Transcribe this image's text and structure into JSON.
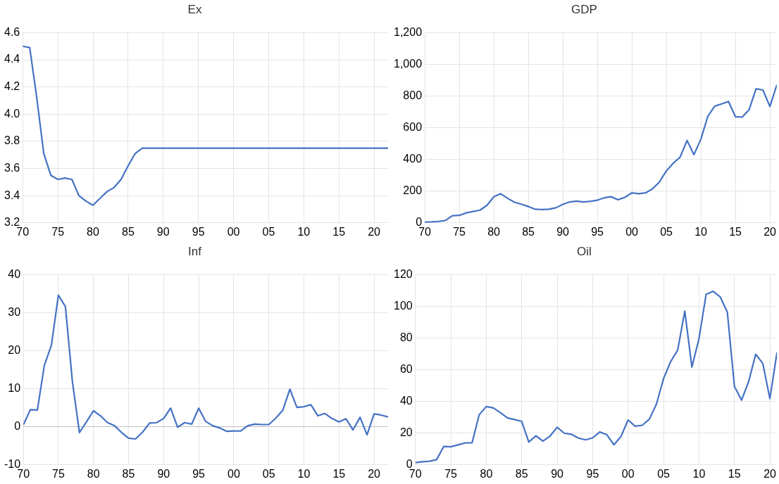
{
  "chart_data": [
    {
      "type": "line",
      "title": "Ex",
      "x": [
        1970,
        1971,
        1972,
        1973,
        1974,
        1975,
        1976,
        1977,
        1978,
        1979,
        1980,
        1981,
        1982,
        1983,
        1984,
        1985,
        1986,
        1987,
        1988,
        1989,
        1990,
        1991,
        1992,
        1993,
        1994,
        1995,
        1996,
        1997,
        1998,
        1999,
        2000,
        2001,
        2002,
        2003,
        2004,
        2005,
        2006,
        2007,
        2008,
        2009,
        2010,
        2011,
        2012,
        2013,
        2014,
        2015,
        2016,
        2017,
        2018,
        2019,
        2020,
        2021,
        2022
      ],
      "series": [
        {
          "color": "#4472c4",
          "values": [
            4.5,
            4.49,
            4.12,
            3.71,
            3.55,
            3.52,
            3.53,
            3.52,
            3.4,
            3.36,
            3.33,
            3.38,
            3.43,
            3.46,
            3.52,
            3.62,
            3.71,
            3.75,
            3.75,
            3.75,
            3.75,
            3.75,
            3.75,
            3.75,
            3.75,
            3.75,
            3.75,
            3.75,
            3.75,
            3.75,
            3.75,
            3.75,
            3.75,
            3.75,
            3.75,
            3.75,
            3.75,
            3.75,
            3.75,
            3.75,
            3.75,
            3.75,
            3.75,
            3.75,
            3.75,
            3.75,
            3.75,
            3.75,
            3.75,
            3.75,
            3.75,
            3.75,
            3.75
          ]
        }
      ],
      "xlim": [
        1970,
        2022
      ],
      "xticks": [
        {
          "value": 1970,
          "label": "70"
        },
        {
          "value": 1975,
          "label": "75"
        },
        {
          "value": 1980,
          "label": "80"
        },
        {
          "value": 1985,
          "label": "85"
        },
        {
          "value": 1990,
          "label": "90"
        },
        {
          "value": 1995,
          "label": "95"
        },
        {
          "value": 2000,
          "label": "00"
        },
        {
          "value": 2005,
          "label": "05"
        },
        {
          "value": 2010,
          "label": "10"
        },
        {
          "value": 2015,
          "label": "15"
        },
        {
          "value": 2020,
          "label": "20"
        }
      ],
      "ylim": [
        3.2,
        4.6
      ],
      "yticks": [
        {
          "value": 3.2,
          "label": "3.2"
        },
        {
          "value": 3.4,
          "label": "3.4"
        },
        {
          "value": 3.6,
          "label": "3.6"
        },
        {
          "value": 3.8,
          "label": "3.8"
        },
        {
          "value": 4.0,
          "label": "4.0"
        },
        {
          "value": 4.2,
          "label": "4.2"
        },
        {
          "value": 4.4,
          "label": "4.4"
        },
        {
          "value": 4.6,
          "label": "4.6"
        }
      ],
      "grid": true,
      "legend": false,
      "marker": "none"
    },
    {
      "type": "line",
      "title": "GDP",
      "x": [
        1970,
        1971,
        1972,
        1973,
        1974,
        1975,
        1976,
        1977,
        1978,
        1979,
        1980,
        1981,
        1982,
        1983,
        1984,
        1985,
        1986,
        1987,
        1988,
        1989,
        1990,
        1991,
        1992,
        1993,
        1994,
        1995,
        1996,
        1997,
        1998,
        1999,
        2000,
        2001,
        2002,
        2003,
        2004,
        2005,
        2006,
        2007,
        2008,
        2009,
        2010,
        2011,
        2012,
        2013,
        2014,
        2015,
        2016,
        2017,
        2018,
        2019,
        2020,
        2021
      ],
      "series": [
        {
          "color": "#4472c4",
          "values": [
            4,
            6,
            9,
            15,
            45,
            47,
            63,
            72,
            80,
            110,
            164,
            184,
            155,
            130,
            118,
            103,
            86,
            84,
            86,
            95,
            117,
            132,
            137,
            132,
            136,
            143,
            158,
            165,
            146,
            161,
            189,
            184,
            189,
            215,
            258,
            328,
            376,
            415,
            520,
            430,
            528,
            671,
            736,
            750,
            766,
            670,
            667,
            715,
            846,
            838,
            734,
            870
          ]
        }
      ],
      "xlim": [
        1970,
        2021
      ],
      "xticks": [
        {
          "value": 1970,
          "label": "70"
        },
        {
          "value": 1975,
          "label": "75"
        },
        {
          "value": 1980,
          "label": "80"
        },
        {
          "value": 1985,
          "label": "85"
        },
        {
          "value": 1990,
          "label": "90"
        },
        {
          "value": 1995,
          "label": "95"
        },
        {
          "value": 2000,
          "label": "00"
        },
        {
          "value": 2005,
          "label": "05"
        },
        {
          "value": 2010,
          "label": "10"
        },
        {
          "value": 2015,
          "label": "15"
        },
        {
          "value": 2020,
          "label": "20"
        }
      ],
      "ylim": [
        0,
        1200
      ],
      "yticks": [
        0,
        200,
        400,
        600,
        800,
        {
          "value": 1000,
          "label": "1,000"
        },
        {
          "value": 1200,
          "label": "1,200"
        }
      ],
      "grid": true,
      "legend": false,
      "marker": "none"
    },
    {
      "type": "line",
      "title": "Inf",
      "x": [
        1970,
        1971,
        1972,
        1973,
        1974,
        1975,
        1976,
        1977,
        1978,
        1979,
        1980,
        1981,
        1982,
        1983,
        1984,
        1985,
        1986,
        1987,
        1988,
        1989,
        1990,
        1991,
        1992,
        1993,
        1994,
        1995,
        1996,
        1997,
        1998,
        1999,
        2000,
        2001,
        2002,
        2003,
        2004,
        2005,
        2006,
        2007,
        2008,
        2009,
        2010,
        2011,
        2012,
        2013,
        2014,
        2015,
        2016,
        2017,
        2018,
        2019,
        2020,
        2021,
        2022
      ],
      "series": [
        {
          "color": "#4472c4",
          "values": [
            0.5,
            4.5,
            4.4,
            16.2,
            21.4,
            34.6,
            31.6,
            11.8,
            -1.5,
            1.3,
            4.2,
            2.9,
            1.1,
            0.3,
            -1.5,
            -3.0,
            -3.2,
            -1.4,
            1.0,
            1.1,
            2.2,
            4.9,
            -0.1,
            1.1,
            0.7,
            4.9,
            1.4,
            0.3,
            -0.3,
            -1.2,
            -1.1,
            -1.1,
            0.3,
            0.7,
            0.6,
            0.6,
            2.3,
            4.4,
            9.9,
            5.1,
            5.3,
            5.8,
            2.9,
            3.5,
            2.2,
            1.3,
            2.1,
            -0.8,
            2.5,
            -2.1,
            3.4,
            3.1,
            2.6
          ]
        }
      ],
      "xlim": [
        1970,
        2022
      ],
      "xticks": [
        {
          "value": 1970,
          "label": "70"
        },
        {
          "value": 1975,
          "label": "75"
        },
        {
          "value": 1980,
          "label": "80"
        },
        {
          "value": 1985,
          "label": "85"
        },
        {
          "value": 1990,
          "label": "90"
        },
        {
          "value": 1995,
          "label": "95"
        },
        {
          "value": 2000,
          "label": "00"
        },
        {
          "value": 2005,
          "label": "05"
        },
        {
          "value": 2010,
          "label": "10"
        },
        {
          "value": 2015,
          "label": "15"
        },
        {
          "value": 2020,
          "label": "20"
        }
      ],
      "ylim": [
        -10,
        40
      ],
      "yticks": [
        -10,
        0,
        10,
        20,
        30,
        40
      ],
      "grid": true,
      "legend": false,
      "marker": "none"
    },
    {
      "type": "line",
      "title": "Oil",
      "x": [
        1970,
        1971,
        1972,
        1973,
        1974,
        1975,
        1976,
        1977,
        1978,
        1979,
        1980,
        1981,
        1982,
        1983,
        1984,
        1985,
        1986,
        1987,
        1988,
        1989,
        1990,
        1991,
        1992,
        1993,
        1994,
        1995,
        1996,
        1997,
        1998,
        1999,
        2000,
        2001,
        2002,
        2003,
        2004,
        2005,
        2006,
        2007,
        2008,
        2009,
        2010,
        2011,
        2012,
        2013,
        2014,
        2015,
        2016,
        2017,
        2018,
        2019,
        2020,
        2021
      ],
      "series": [
        {
          "color": "#4472c4",
          "values": [
            1.4,
            2.0,
            2.3,
            3.3,
            11.6,
            11.4,
            12.6,
            13.8,
            13.9,
            31.6,
            36.8,
            35.9,
            32.9,
            29.6,
            28.6,
            27.4,
            14.4,
            18.4,
            14.9,
            18.2,
            23.7,
            20.0,
            19.3,
            16.9,
            15.8,
            17.0,
            20.7,
            19.1,
            12.7,
            17.9,
            28.3,
            24.4,
            25.0,
            28.8,
            38.3,
            54.4,
            65.1,
            72.4,
            97.0,
            61.7,
            79.6,
            107.5,
            109.5,
            105.9,
            96.3,
            49.5,
            40.8,
            52.5,
            69.8,
            64.0,
            41.8,
            70.9
          ]
        }
      ],
      "xlim": [
        1970,
        2021
      ],
      "xticks": [
        {
          "value": 1970,
          "label": "70"
        },
        {
          "value": 1975,
          "label": "75"
        },
        {
          "value": 1980,
          "label": "80"
        },
        {
          "value": 1985,
          "label": "85"
        },
        {
          "value": 1990,
          "label": "90"
        },
        {
          "value": 1995,
          "label": "95"
        },
        {
          "value": 2000,
          "label": "00"
        },
        {
          "value": 2005,
          "label": "05"
        },
        {
          "value": 2010,
          "label": "10"
        },
        {
          "value": 2015,
          "label": "15"
        },
        {
          "value": 2020,
          "label": "20"
        }
      ],
      "ylim": [
        0,
        120
      ],
      "yticks": [
        0,
        20,
        40,
        60,
        80,
        100,
        120
      ],
      "grid": true,
      "legend": false,
      "marker": "none"
    }
  ]
}
